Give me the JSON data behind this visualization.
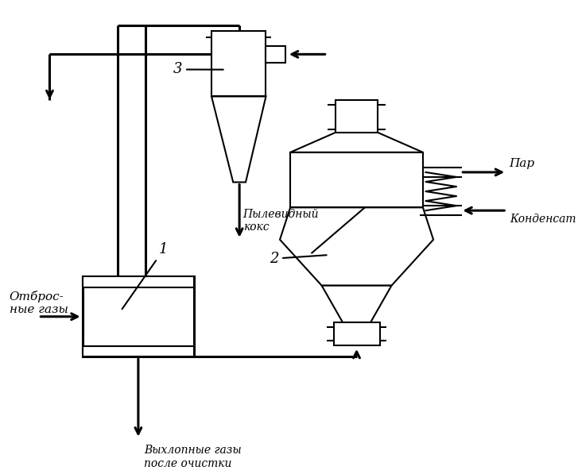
{
  "bg_color": "#ffffff",
  "line_color": "#000000",
  "lw": 1.5,
  "lw2": 2.2,
  "fig_width": 7.27,
  "fig_height": 5.97,
  "labels": {
    "otbrosnye": "Отброс-\nные газы",
    "vykhlopnye": "Выхлопные газы\nпосле очистки",
    "pylevidny": "Пылевидный\nкокс",
    "par": "Пар",
    "kondensат": "Конденсат",
    "num1": "1",
    "num2": "2",
    "num3": "3"
  }
}
